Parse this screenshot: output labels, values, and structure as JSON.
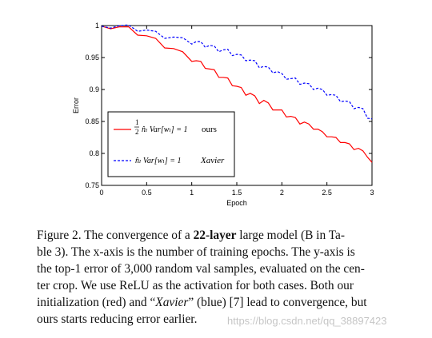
{
  "chart_data": {
    "type": "line",
    "xlabel": "Epoch",
    "ylabel": "Error",
    "xlim": [
      0,
      3
    ],
    "ylim": [
      0.75,
      1
    ],
    "xticks": [
      "0",
      "0.5",
      "1",
      "1.5",
      "2",
      "2.5",
      "3"
    ],
    "yticks": [
      "0.75",
      "0.8",
      "0.85",
      "0.9",
      "0.95",
      "1"
    ],
    "xtick_values": [
      0,
      0.5,
      1,
      1.5,
      2,
      2.5,
      3
    ],
    "ytick_values": [
      0.75,
      0.8,
      0.85,
      0.9,
      0.95,
      1
    ],
    "legend_placement": "center-left",
    "series": [
      {
        "name": "ours",
        "legend_math": "(1/2) n̂_l Var[w_l] = 1",
        "legend_text": "ours",
        "color": "#ff0000",
        "style": "solid",
        "x": [
          0,
          0.1,
          0.2,
          0.3,
          0.4,
          0.5,
          0.6,
          0.7,
          0.8,
          0.9,
          1.0,
          1.05,
          1.1,
          1.15,
          1.2,
          1.25,
          1.3,
          1.35,
          1.4,
          1.45,
          1.5,
          1.55,
          1.6,
          1.65,
          1.7,
          1.75,
          1.8,
          1.85,
          1.9,
          1.95,
          2.0,
          2.05,
          2.1,
          2.15,
          2.2,
          2.25,
          2.3,
          2.35,
          2.4,
          2.45,
          2.5,
          2.55,
          2.6,
          2.65,
          2.7,
          2.75,
          2.8,
          2.85,
          2.9,
          2.95,
          3.0
        ],
        "values": [
          0.999,
          0.998,
          0.996,
          0.994,
          0.988,
          0.982,
          0.976,
          0.968,
          0.962,
          0.955,
          0.947,
          0.943,
          0.94,
          0.936,
          0.93,
          0.927,
          0.922,
          0.917,
          0.914,
          0.909,
          0.903,
          0.899,
          0.894,
          0.892,
          0.886,
          0.881,
          0.881,
          0.875,
          0.871,
          0.866,
          0.864,
          0.86,
          0.856,
          0.852,
          0.849,
          0.847,
          0.842,
          0.841,
          0.836,
          0.83,
          0.829,
          0.824,
          0.821,
          0.82,
          0.815,
          0.811,
          0.809,
          0.806,
          0.8,
          0.797,
          0.786
        ]
      },
      {
        "name": "Xavier",
        "legend_math": "n̂_l Var[w_l] = 1",
        "legend_text": "Xavier",
        "color": "#0000ff",
        "style": "dashed",
        "x": [
          0,
          0.1,
          0.2,
          0.3,
          0.4,
          0.5,
          0.6,
          0.7,
          0.8,
          0.9,
          1.0,
          1.05,
          1.1,
          1.15,
          1.2,
          1.25,
          1.3,
          1.35,
          1.4,
          1.45,
          1.5,
          1.55,
          1.6,
          1.65,
          1.7,
          1.75,
          1.8,
          1.85,
          1.9,
          1.95,
          2.0,
          2.05,
          2.1,
          2.15,
          2.2,
          2.25,
          2.3,
          2.35,
          2.4,
          2.45,
          2.5,
          2.55,
          2.6,
          2.65,
          2.7,
          2.75,
          2.8,
          2.85,
          2.9,
          2.95,
          3.0
        ],
        "values": [
          0.999,
          0.999,
          0.998,
          0.997,
          0.994,
          0.991,
          0.987,
          0.983,
          0.98,
          0.977,
          0.974,
          0.973,
          0.971,
          0.969,
          0.967,
          0.964,
          0.962,
          0.96,
          0.959,
          0.956,
          0.953,
          0.95,
          0.948,
          0.944,
          0.941,
          0.937,
          0.934,
          0.931,
          0.929,
          0.926,
          0.921,
          0.919,
          0.915,
          0.914,
          0.911,
          0.908,
          0.905,
          0.903,
          0.9,
          0.896,
          0.894,
          0.89,
          0.887,
          0.884,
          0.88,
          0.877,
          0.873,
          0.87,
          0.866,
          0.858,
          0.854
        ]
      }
    ]
  },
  "caption": {
    "lines": [
      "Figure 2. The convergence of a 22-layer large model (B in Ta-",
      "ble 3). The x-axis is the number of training epochs. The y-axis is",
      "the top-1 error of 3,000 random val samples, evaluated on the cen-",
      "ter crop. We use ReLU as the activation for both cases. Both our",
      "initialization (red) and “Xavier” (blue) [7] lead to convergence, but",
      "ours starts reducing error earlier."
    ]
  },
  "watermark": "https://blog.csdn.net/qq_38897423"
}
